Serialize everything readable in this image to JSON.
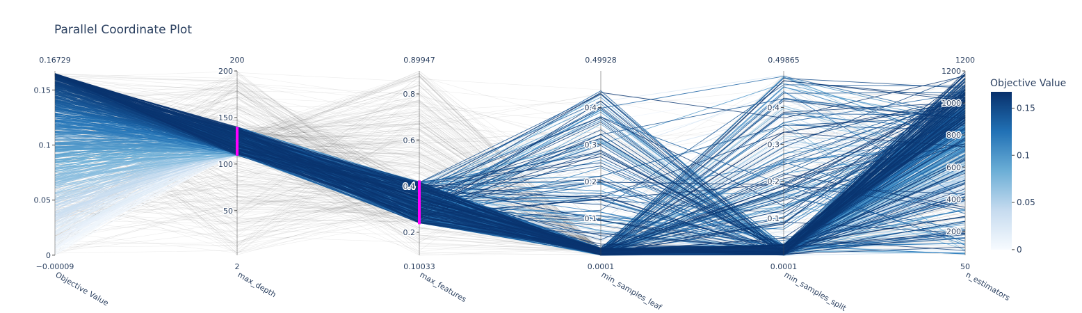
{
  "chart_data": {
    "type": "parallel_coordinates",
    "title": "Parallel Coordinate Plot",
    "dimensions": [
      {
        "label": "Objective Value",
        "range": [
          -9e-05,
          0.16729
        ],
        "range_labels": [
          "−0.00009",
          "0.16729"
        ],
        "ticks": [
          0,
          0.05,
          0.1,
          0.15
        ],
        "tick_labels": [
          "0",
          "0.05",
          "0.1",
          "0.15"
        ]
      },
      {
        "label": "max_depth",
        "range": [
          2,
          200
        ],
        "range_labels": [
          "2",
          "200"
        ],
        "ticks": [
          50,
          100,
          150,
          200
        ],
        "tick_labels": [
          "50",
          "100",
          "150",
          "200"
        ],
        "constraint": [
          109,
          140
        ]
      },
      {
        "label": "max_features",
        "range": [
          0.10033,
          0.89947
        ],
        "range_labels": [
          "0.10033",
          "0.89947"
        ],
        "ticks": [
          0.2,
          0.4,
          0.6,
          0.8
        ],
        "tick_labels": [
          "0.2",
          "0.4",
          "0.6",
          "0.8"
        ],
        "constraint": [
          0.235,
          0.425
        ]
      },
      {
        "label": "min_samples_leaf",
        "range": [
          0.0001,
          0.49928
        ],
        "range_labels": [
          "0.0001",
          "0.49928"
        ],
        "ticks": [
          0.1,
          0.2,
          0.3,
          0.4
        ],
        "tick_labels": [
          "0.1",
          "0.2",
          "0.3",
          "0.4"
        ]
      },
      {
        "label": "min_samples_split",
        "range": [
          0.0001,
          0.49865
        ],
        "range_labels": [
          "0.0001",
          "0.49865"
        ],
        "ticks": [
          0.1,
          0.2,
          0.3,
          0.4
        ],
        "tick_labels": [
          "0.1",
          "0.2",
          "0.3",
          "0.4"
        ]
      },
      {
        "label": "n_estimators",
        "range": [
          50,
          1200
        ],
        "range_labels": [
          "50",
          "1200"
        ],
        "ticks": [
          200,
          400,
          600,
          800,
          1000,
          1200
        ],
        "tick_labels": [
          "200",
          "400",
          "600",
          "800",
          "1000",
          "1200"
        ]
      }
    ],
    "colorbar": {
      "title": "Objective Value",
      "ticks": [
        0,
        0.05,
        0.1,
        0.15
      ],
      "tick_labels": [
        "0",
        "0.05",
        "0.1",
        "0.15"
      ],
      "colors": [
        "#f7fbff",
        "#c6dbef",
        "#6baed6",
        "#2171b5",
        "#08306b"
      ]
    },
    "constraint_color": "#ff00ff",
    "filtered_line_color": "#444444"
  }
}
